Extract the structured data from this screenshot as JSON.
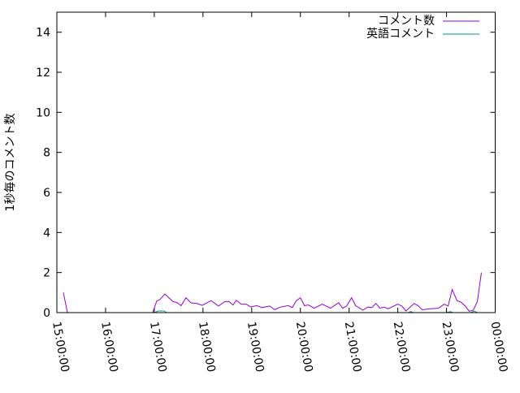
{
  "chart_data": {
    "type": "line",
    "title": "",
    "xlabel": "",
    "ylabel": "1秒毎のコメント数",
    "ylim": [
      0,
      15
    ],
    "xlim": [
      "15:00:00",
      "00:00:00"
    ],
    "y_ticks": [
      "0",
      "2",
      "4",
      "6",
      "8",
      "10",
      "12",
      "14"
    ],
    "x_ticks": [
      "15:00:00",
      "16:00:00",
      "17:00:00",
      "18:00:00",
      "19:00:00",
      "20:00:00",
      "21:00:00",
      "22:00:00",
      "23:00:00",
      "00:00:00"
    ],
    "grid": false,
    "legend_position": "top-right",
    "series": [
      {
        "name": "コメント数",
        "color": "#9400d3",
        "points": [
          [
            "15:08",
            1.0
          ],
          [
            "15:13",
            0
          ],
          [
            "15:50",
            0
          ],
          [
            "16:50",
            0
          ],
          [
            "16:58",
            0
          ],
          [
            "17:03",
            0.58
          ],
          [
            "17:07",
            0.65
          ],
          [
            "17:13",
            0.93
          ],
          [
            "17:23",
            0.55
          ],
          [
            "17:28",
            0.5
          ],
          [
            "17:33",
            0.35
          ],
          [
            "17:39",
            0.74
          ],
          [
            "17:45",
            0.49
          ],
          [
            "17:53",
            0.45
          ],
          [
            "17:59",
            0.36
          ],
          [
            "18:10",
            0.6
          ],
          [
            "18:19",
            0.33
          ],
          [
            "18:27",
            0.55
          ],
          [
            "18:32",
            0.55
          ],
          [
            "18:37",
            0.38
          ],
          [
            "18:41",
            0.62
          ],
          [
            "18:47",
            0.42
          ],
          [
            "18:53",
            0.42
          ],
          [
            "18:59",
            0.28
          ],
          [
            "19:06",
            0.35
          ],
          [
            "19:13",
            0.25
          ],
          [
            "19:22",
            0.33
          ],
          [
            "19:28",
            0.15
          ],
          [
            "19:30",
            0.18
          ],
          [
            "19:35",
            0.27
          ],
          [
            "19:45",
            0.35
          ],
          [
            "19:50",
            0.25
          ],
          [
            "19:55",
            0.6
          ],
          [
            "20:00",
            0.74
          ],
          [
            "20:05",
            0.35
          ],
          [
            "20:10",
            0.38
          ],
          [
            "20:17",
            0.22
          ],
          [
            "20:27",
            0.42
          ],
          [
            "20:37",
            0.22
          ],
          [
            "20:47",
            0.49
          ],
          [
            "20:52",
            0.22
          ],
          [
            "20:57",
            0.33
          ],
          [
            "21:03",
            0.74
          ],
          [
            "21:08",
            0.35
          ],
          [
            "21:17",
            0.12
          ],
          [
            "21:23",
            0.28
          ],
          [
            "21:28",
            0.25
          ],
          [
            "21:33",
            0.46
          ],
          [
            "21:38",
            0.22
          ],
          [
            "21:43",
            0.28
          ],
          [
            "21:48",
            0.19
          ],
          [
            "22:00",
            0.42
          ],
          [
            "22:05",
            0.33
          ],
          [
            "22:10",
            0.08
          ],
          [
            "22:20",
            0.46
          ],
          [
            "22:25",
            0.35
          ],
          [
            "22:30",
            0.14
          ],
          [
            "22:40",
            0.19
          ],
          [
            "22:50",
            0.22
          ],
          [
            "22:57",
            0.42
          ],
          [
            "23:02",
            0.33
          ],
          [
            "23:07",
            1.15
          ],
          [
            "23:13",
            0.6
          ],
          [
            "23:18",
            0.52
          ],
          [
            "23:23",
            0.33
          ],
          [
            "23:28",
            0.07
          ],
          [
            "23:33",
            0.12
          ],
          [
            "23:38",
            0.55
          ],
          [
            "23:43",
            2.0
          ]
        ]
      },
      {
        "name": "英語コメント",
        "color": "#009e73",
        "points": [
          [
            "16:55",
            0
          ],
          [
            "17:00",
            0
          ],
          [
            "17:05",
            0.08
          ],
          [
            "17:12",
            0.08
          ],
          [
            "17:15",
            0
          ],
          [
            "18:00",
            0
          ],
          [
            "19:00",
            0
          ],
          [
            "20:00",
            0
          ],
          [
            "21:00",
            0
          ],
          [
            "22:00",
            0
          ],
          [
            "22:13",
            0
          ],
          [
            "22:16",
            0.06
          ],
          [
            "22:19",
            0
          ],
          [
            "23:00",
            0
          ],
          [
            "23:05",
            0.05
          ],
          [
            "23:08",
            0
          ],
          [
            "23:30",
            0
          ],
          [
            "23:34",
            0.08
          ],
          [
            "23:38",
            0
          ],
          [
            "23:43",
            0
          ]
        ]
      }
    ]
  }
}
